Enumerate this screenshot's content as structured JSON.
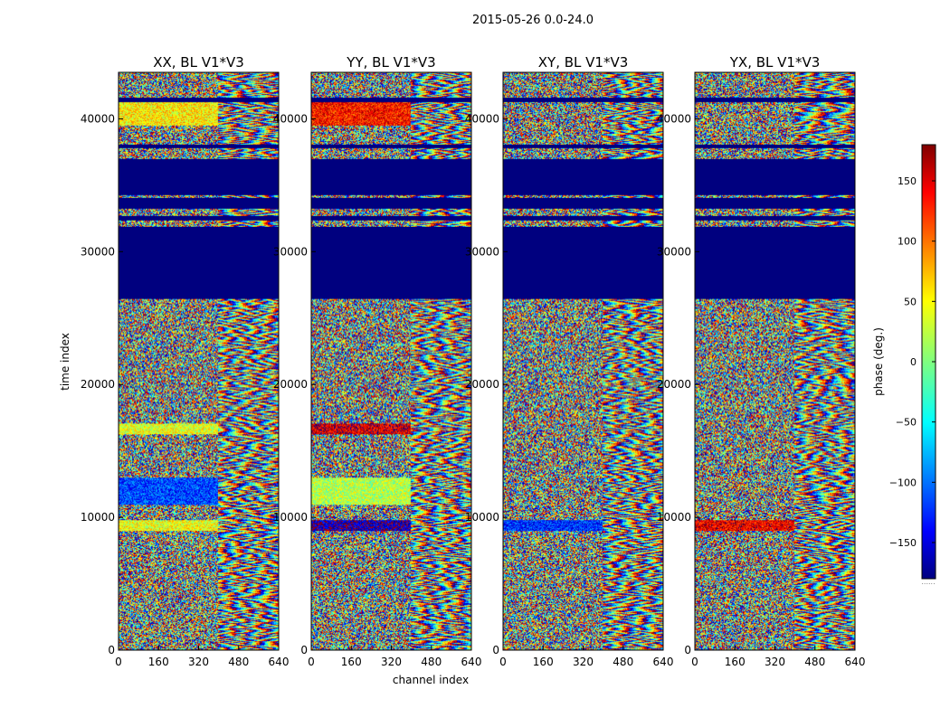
{
  "chart_data": {
    "type": "heatmap",
    "suptitle": "2015-05-26 0.0-24.0",
    "xlabel": "channel index",
    "ylabel": "time index",
    "xlim": [
      0,
      640
    ],
    "ylim": [
      0,
      43500
    ],
    "x_ticks": [
      0,
      160,
      320,
      480,
      640
    ],
    "y_ticks": [
      0,
      10000,
      20000,
      30000,
      40000
    ],
    "panels": [
      {
        "title": "XX, BL V1*V3",
        "pol": "XX",
        "seed": 11
      },
      {
        "title": "YY, BL V1*V3",
        "pol": "YY",
        "seed": 23
      },
      {
        "title": "XY, BL V1*V3",
        "pol": "XY",
        "seed": 37
      },
      {
        "title": "YX, BL V1*V3",
        "pol": "YX",
        "seed": 51
      }
    ],
    "colorbar": {
      "label": "phase (deg.)",
      "range": [
        -180,
        180
      ],
      "ticks": [
        -150,
        -100,
        -50,
        0,
        50,
        100,
        150
      ],
      "tick_labels": [
        "−150",
        "−100",
        "−50",
        "0",
        "50",
        "100",
        "150"
      ],
      "colormap": "jet",
      "footer": "......"
    },
    "flagged_time_ranges": [
      [
        26500,
        31900
      ],
      [
        32400,
        32700
      ],
      [
        33300,
        34100
      ],
      [
        34300,
        37000
      ],
      [
        37800,
        38100
      ],
      [
        41300,
        41600
      ]
    ],
    "coherent_time_bands": [
      {
        "range": [
          9000,
          9800
        ],
        "XX": 40,
        "YY": -160,
        "XY": -120,
        "YX": 140
      },
      {
        "range": [
          16300,
          17100
        ],
        "XX": 35,
        "YY": 150,
        "XY": null,
        "YX": null
      },
      {
        "range": [
          39500,
          41300
        ],
        "XX": 50,
        "YY": 130,
        "XY": null,
        "YX": null
      },
      {
        "range": [
          11000,
          13000
        ],
        "XX": -110,
        "YY": 20,
        "XY": null,
        "YX": null
      }
    ]
  }
}
